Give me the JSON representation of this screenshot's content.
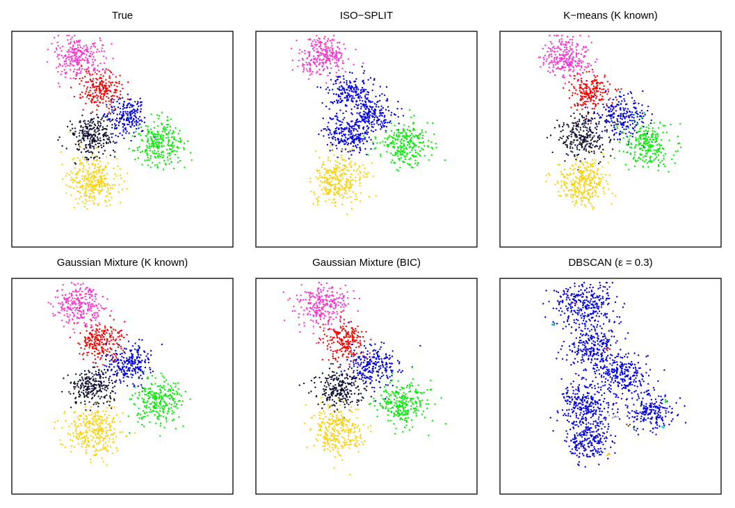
{
  "colors": {
    "magenta": "#ff33cc",
    "red": "#ff0000",
    "blue": "#0000ee",
    "black": "#111133",
    "green": "#00ee00",
    "yellow": "#ffd000",
    "teal": "#008b8b",
    "cyan": "#00e5e5",
    "gray": "#a0a0c8",
    "brown": "#8b4513",
    "darkgreen": "#006400",
    "orange": "#ffb000"
  },
  "chart_data": [
    {
      "type": "scatter",
      "title": "True",
      "xlabel": "",
      "ylabel": "",
      "clusters": [
        {
          "color": "magenta",
          "cx": 0.3,
          "cy": 0.12,
          "sx": 0.055,
          "sy": 0.048,
          "n": 260
        },
        {
          "color": "red",
          "cx": 0.4,
          "cy": 0.27,
          "sx": 0.05,
          "sy": 0.042,
          "n": 220
        },
        {
          "color": "blue",
          "cx": 0.52,
          "cy": 0.39,
          "sx": 0.048,
          "sy": 0.045,
          "n": 200
        },
        {
          "color": "black",
          "cx": 0.37,
          "cy": 0.48,
          "sx": 0.055,
          "sy": 0.048,
          "n": 260
        },
        {
          "color": "green",
          "cx": 0.67,
          "cy": 0.52,
          "sx": 0.058,
          "sy": 0.05,
          "n": 260
        },
        {
          "color": "yellow",
          "cx": 0.37,
          "cy": 0.69,
          "sx": 0.058,
          "sy": 0.055,
          "n": 300
        }
      ]
    },
    {
      "type": "scatter",
      "title": "ISO−SPLIT",
      "xlabel": "",
      "ylabel": "",
      "clusters": [
        {
          "color": "magenta",
          "cx": 0.3,
          "cy": 0.12,
          "sx": 0.055,
          "sy": 0.048,
          "n": 260
        },
        {
          "color": "blue",
          "cx": 0.43,
          "cy": 0.28,
          "sx": 0.055,
          "sy": 0.045,
          "n": 200
        },
        {
          "color": "blue",
          "cx": 0.53,
          "cy": 0.39,
          "sx": 0.05,
          "sy": 0.045,
          "n": 200
        },
        {
          "color": "blue",
          "cx": 0.42,
          "cy": 0.48,
          "sx": 0.05,
          "sy": 0.045,
          "n": 230
        },
        {
          "color": "green",
          "cx": 0.67,
          "cy": 0.52,
          "sx": 0.058,
          "sy": 0.05,
          "n": 260
        },
        {
          "color": "yellow",
          "cx": 0.37,
          "cy": 0.69,
          "sx": 0.058,
          "sy": 0.055,
          "n": 300
        }
      ]
    },
    {
      "type": "scatter",
      "title": "K−means (K known)",
      "xlabel": "",
      "ylabel": "",
      "clusters": [
        {
          "color": "magenta",
          "cx": 0.3,
          "cy": 0.12,
          "sx": 0.055,
          "sy": 0.048,
          "n": 260
        },
        {
          "color": "red",
          "cx": 0.41,
          "cy": 0.28,
          "sx": 0.05,
          "sy": 0.042,
          "n": 220
        },
        {
          "color": "blue",
          "cx": 0.55,
          "cy": 0.39,
          "sx": 0.055,
          "sy": 0.048,
          "n": 230
        },
        {
          "color": "black",
          "cx": 0.38,
          "cy": 0.49,
          "sx": 0.055,
          "sy": 0.048,
          "n": 260
        },
        {
          "color": "green",
          "cx": 0.67,
          "cy": 0.53,
          "sx": 0.055,
          "sy": 0.05,
          "n": 240
        },
        {
          "color": "yellow",
          "cx": 0.37,
          "cy": 0.7,
          "sx": 0.058,
          "sy": 0.055,
          "n": 300
        }
      ]
    },
    {
      "type": "scatter",
      "title": "Gaussian Mixture (K known)",
      "xlabel": "",
      "ylabel": "",
      "clusters": [
        {
          "color": "magenta",
          "cx": 0.3,
          "cy": 0.12,
          "sx": 0.055,
          "sy": 0.048,
          "n": 260
        },
        {
          "color": "red",
          "cx": 0.4,
          "cy": 0.29,
          "sx": 0.048,
          "sy": 0.045,
          "n": 220
        },
        {
          "color": "blue",
          "cx": 0.53,
          "cy": 0.4,
          "sx": 0.055,
          "sy": 0.05,
          "n": 230
        },
        {
          "color": "black",
          "cx": 0.37,
          "cy": 0.5,
          "sx": 0.05,
          "sy": 0.045,
          "n": 250
        },
        {
          "color": "green",
          "cx": 0.66,
          "cy": 0.57,
          "sx": 0.058,
          "sy": 0.05,
          "n": 260
        },
        {
          "color": "yellow",
          "cx": 0.37,
          "cy": 0.71,
          "sx": 0.06,
          "sy": 0.058,
          "n": 300
        }
      ]
    },
    {
      "type": "scatter",
      "title": "Gaussian Mixture (BIC)",
      "xlabel": "",
      "ylabel": "",
      "clusters": [
        {
          "color": "magenta",
          "cx": 0.3,
          "cy": 0.12,
          "sx": 0.055,
          "sy": 0.048,
          "n": 260
        },
        {
          "color": "red",
          "cx": 0.4,
          "cy": 0.29,
          "sx": 0.048,
          "sy": 0.045,
          "n": 220
        },
        {
          "color": "blue",
          "cx": 0.54,
          "cy": 0.41,
          "sx": 0.058,
          "sy": 0.05,
          "n": 240
        },
        {
          "color": "black",
          "cx": 0.38,
          "cy": 0.51,
          "sx": 0.05,
          "sy": 0.045,
          "n": 250
        },
        {
          "color": "green",
          "cx": 0.66,
          "cy": 0.58,
          "sx": 0.058,
          "sy": 0.05,
          "n": 260
        },
        {
          "color": "yellow",
          "cx": 0.37,
          "cy": 0.71,
          "sx": 0.06,
          "sy": 0.058,
          "n": 300
        }
      ]
    },
    {
      "type": "scatter",
      "title": "DBSCAN (ε = 0.3)",
      "xlabel": "",
      "ylabel": "",
      "clusters": [
        {
          "color": "blue",
          "cx": 0.38,
          "cy": 0.13,
          "sx": 0.065,
          "sy": 0.055,
          "n": 300
        },
        {
          "color": "blue",
          "cx": 0.42,
          "cy": 0.32,
          "sx": 0.06,
          "sy": 0.055,
          "n": 250
        },
        {
          "color": "blue",
          "cx": 0.55,
          "cy": 0.45,
          "sx": 0.06,
          "sy": 0.05,
          "n": 250
        },
        {
          "color": "blue",
          "cx": 0.38,
          "cy": 0.59,
          "sx": 0.058,
          "sy": 0.055,
          "n": 280
        },
        {
          "color": "blue",
          "cx": 0.68,
          "cy": 0.62,
          "sx": 0.05,
          "sy": 0.045,
          "n": 200
        },
        {
          "color": "blue",
          "cx": 0.4,
          "cy": 0.75,
          "sx": 0.055,
          "sy": 0.045,
          "n": 220
        },
        {
          "color": "teal",
          "cx": 0.24,
          "cy": 0.21,
          "sx": 0.006,
          "sy": 0.005,
          "n": 4
        },
        {
          "color": "red",
          "cx": 0.34,
          "cy": 0.12,
          "sx": 0.004,
          "sy": 0.004,
          "n": 2
        },
        {
          "color": "red",
          "cx": 0.49,
          "cy": 0.33,
          "sx": 0.005,
          "sy": 0.005,
          "n": 4
        },
        {
          "color": "green",
          "cx": 0.75,
          "cy": 0.57,
          "sx": 0.005,
          "sy": 0.005,
          "n": 4
        },
        {
          "color": "gray",
          "cx": 0.53,
          "cy": 0.64,
          "sx": 0.015,
          "sy": 0.004,
          "n": 8
        },
        {
          "color": "brown",
          "cx": 0.58,
          "cy": 0.68,
          "sx": 0.004,
          "sy": 0.004,
          "n": 3
        },
        {
          "color": "darkgreen",
          "cx": 0.61,
          "cy": 0.69,
          "sx": 0.004,
          "sy": 0.004,
          "n": 3
        },
        {
          "color": "cyan",
          "cx": 0.74,
          "cy": 0.69,
          "sx": 0.005,
          "sy": 0.004,
          "n": 4
        },
        {
          "color": "orange",
          "cx": 0.49,
          "cy": 0.82,
          "sx": 0.005,
          "sy": 0.004,
          "n": 4
        }
      ]
    }
  ]
}
